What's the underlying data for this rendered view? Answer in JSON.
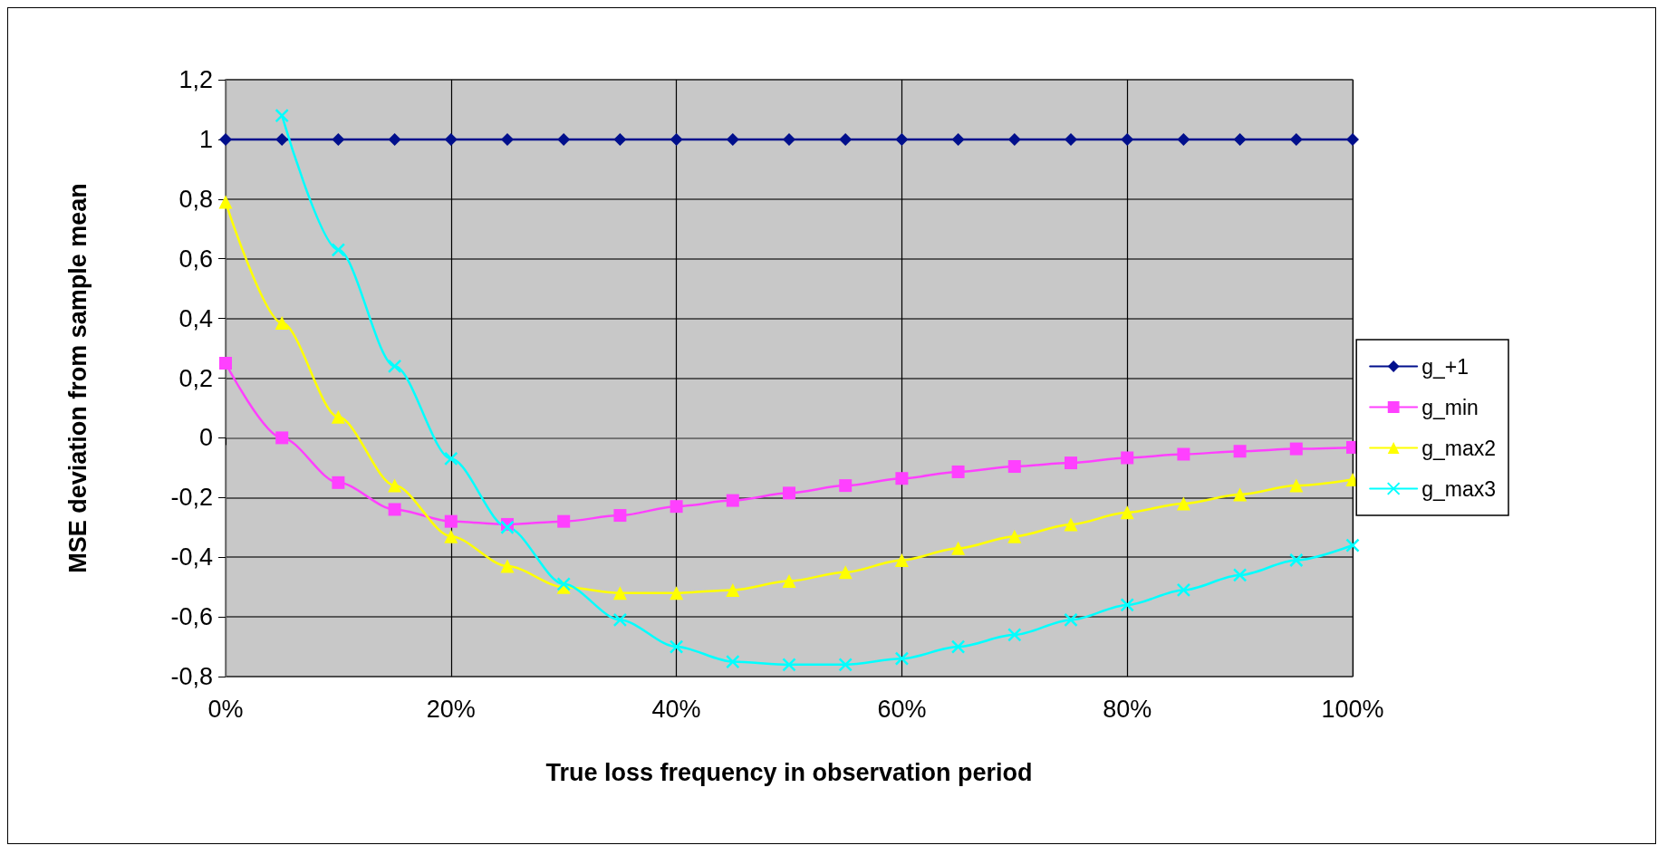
{
  "chart_data": {
    "type": "line",
    "xlabel": "True loss frequency in observation period",
    "ylabel": "MSE deviation from sample mean",
    "x": [
      0,
      5,
      10,
      15,
      20,
      25,
      30,
      35,
      40,
      45,
      50,
      55,
      60,
      65,
      70,
      75,
      80,
      85,
      90,
      95,
      100
    ],
    "series": [
      {
        "name": "g_+1",
        "color": "#000f8c",
        "marker": "diamond",
        "values": [
          1,
          1,
          1,
          1,
          1,
          1,
          1,
          1,
          1,
          1,
          1,
          1,
          1,
          1,
          1,
          1,
          1,
          1,
          1,
          1,
          1
        ]
      },
      {
        "name": "g_min",
        "color": "#ff40ff",
        "marker": "square",
        "values": [
          0.25,
          0.0,
          -0.15,
          -0.24,
          -0.28,
          -0.29,
          -0.28,
          -0.26,
          -0.23,
          -0.21,
          -0.185,
          -0.16,
          -0.136,
          -0.114,
          -0.096,
          -0.084,
          -0.067,
          -0.055,
          -0.045,
          -0.037,
          -0.032
        ]
      },
      {
        "name": "g_max2",
        "color": "#ffff00",
        "marker": "triangle",
        "values": [
          0.79,
          0.385,
          0.07,
          -0.16,
          -0.33,
          -0.43,
          -0.5,
          -0.52,
          -0.52,
          -0.51,
          -0.48,
          -0.45,
          -0.41,
          -0.37,
          -0.33,
          -0.29,
          -0.25,
          -0.22,
          -0.19,
          -0.16,
          -0.14
        ]
      },
      {
        "name": "g_max3",
        "color": "#00ffff",
        "marker": "cross",
        "values": [
          null,
          1.08,
          0.63,
          0.24,
          -0.07,
          -0.3,
          -0.49,
          -0.61,
          -0.7,
          -0.75,
          -0.76,
          -0.76,
          -0.74,
          -0.7,
          -0.66,
          -0.61,
          -0.56,
          -0.51,
          -0.46,
          -0.41,
          -0.36
        ]
      }
    ],
    "xlim": [
      0,
      100
    ],
    "xticks": [
      {
        "value": 0,
        "label": "0%"
      },
      {
        "value": 20,
        "label": "20%"
      },
      {
        "value": 40,
        "label": "40%"
      },
      {
        "value": 60,
        "label": "60%"
      },
      {
        "value": 80,
        "label": "80%"
      },
      {
        "value": 100,
        "label": "100%"
      }
    ],
    "ylim": [
      -0.8,
      1.2
    ],
    "yticks": [
      {
        "value": -0.8,
        "label": "-0,8"
      },
      {
        "value": -0.6,
        "label": "-0,6"
      },
      {
        "value": -0.4,
        "label": "-0,4"
      },
      {
        "value": -0.2,
        "label": "-0,2"
      },
      0,
      {
        "value": 0.2,
        "label": "0,2"
      },
      {
        "value": 0.4,
        "label": "0,4"
      },
      {
        "value": 0.6,
        "label": "0,6"
      },
      {
        "value": 0.8,
        "label": "0,8"
      },
      1,
      {
        "value": 1.2,
        "label": "1,2"
      }
    ],
    "grid": true,
    "legend": "right",
    "line_style": "solid"
  }
}
